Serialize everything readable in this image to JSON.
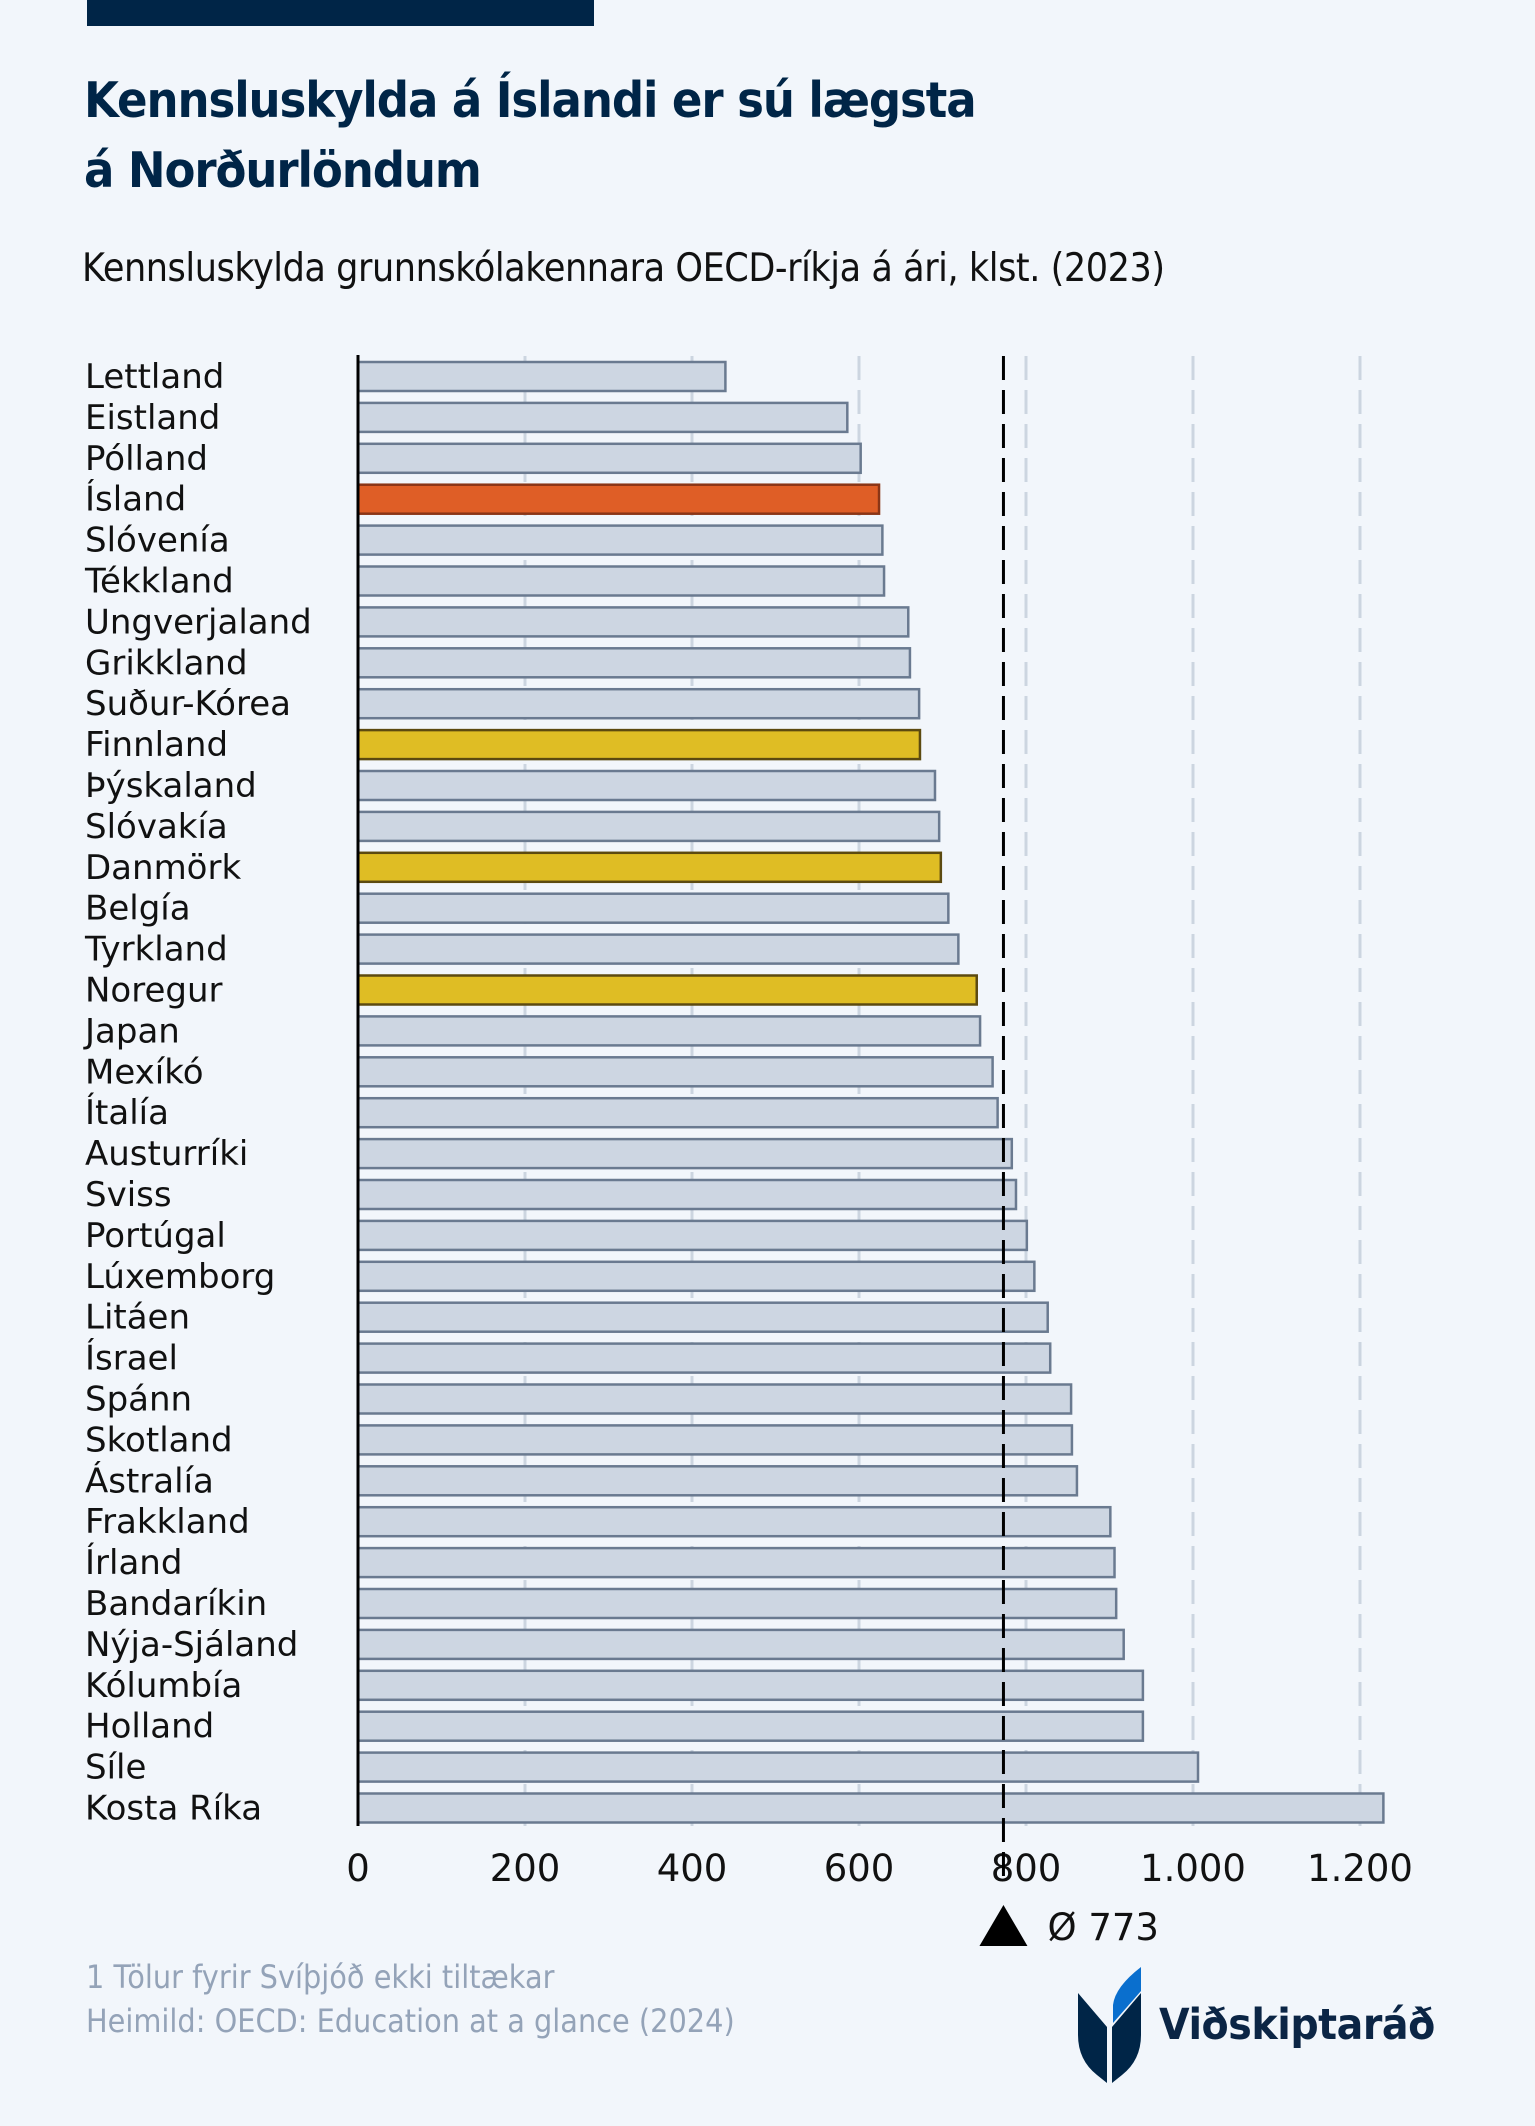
{
  "header": {
    "title_line1": "Kennsluskylda á Íslandi er sú lægsta",
    "title_line2": "á Norðurlöndum",
    "subtitle": "Kennsluskylda grunnskólakennara OECD-ríkja á ári, klst. (2023)"
  },
  "colors": {
    "default_bar": "#cdd6e2",
    "default_bar_border": "#6a7a90",
    "iceland_bar": "#df5e26",
    "iceland_bar_border": "#8a3516",
    "nordic_bar": "#dfbd24",
    "nordic_bar_border": "#5c4a10",
    "brand_navy": "#002547",
    "brand_blue": "#0a6fce",
    "grid": "#ccd5e0",
    "mean_line": "#000000"
  },
  "chart_data": {
    "type": "bar",
    "orientation": "horizontal",
    "title": "Kennsluskylda á Íslandi er sú lægsta á Norðurlöndum",
    "subtitle": "Kennsluskylda grunnskólakennara OECD-ríkja á ári, klst. (2023)",
    "xlabel": "",
    "ylabel": "",
    "xlim": [
      0,
      1200
    ],
    "xticks": [
      0,
      200,
      400,
      600,
      800,
      1000,
      1200
    ],
    "xtick_labels": [
      "0",
      "200",
      "400",
      "600",
      "800",
      "1.000",
      "1.200"
    ],
    "grid": true,
    "categories": [
      "Lettland",
      "Eistland",
      "Pólland",
      "Ísland",
      "Slóvenía",
      "Tékkland",
      "Ungverjaland",
      "Grikkland",
      "Suður-Kórea",
      "Finnland",
      "Þýskaland",
      "Slóvakía",
      "Danmörk",
      "Belgía",
      "Tyrkland",
      "Noregur",
      "Japan",
      "Mexíkó",
      "Ítalía",
      "Austurríki",
      "Sviss",
      "Portúgal",
      "Lúxemborg",
      "Litáen",
      "Ísrael",
      "Spánn",
      "Skotland",
      "Ástralía",
      "Frakkland",
      "Írland",
      "Bandaríkin",
      "Nýja-Sjáland",
      "Kólumbía",
      "Holland",
      "Síle",
      "Kosta Ríka"
    ],
    "values": [
      440,
      586,
      602,
      624,
      628,
      630,
      659,
      661,
      672,
      673,
      691,
      696,
      698,
      707,
      719,
      741,
      745,
      760,
      766,
      783,
      788,
      801,
      810,
      826,
      829,
      854,
      855,
      861,
      901,
      906,
      908,
      917,
      940,
      940,
      1006,
      1228
    ],
    "highlight": {
      "Ísland": "iceland",
      "Finnland": "nordic",
      "Danmörk": "nordic",
      "Noregur": "nordic"
    },
    "mean": {
      "value": 773,
      "label": "Ø 773"
    }
  },
  "footer": {
    "note": "1 Tölur fyrir Svíþjóð ekki tiltækar",
    "source": "Heimild: OECD: Education at a glance (2024)",
    "logo_text": "Viðskiptaráð"
  }
}
